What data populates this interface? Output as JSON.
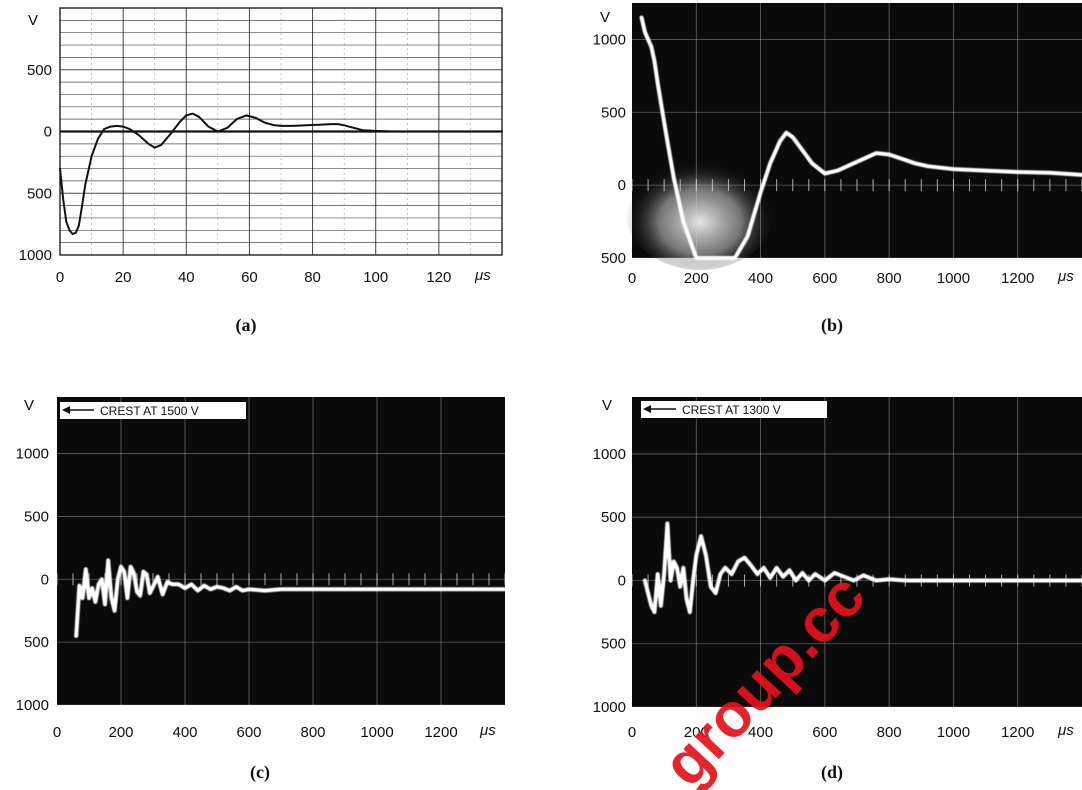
{
  "watermark": "group.cc",
  "chart_data": [
    {
      "type": "line",
      "caption": "(a)",
      "ylabel": "V",
      "xunit": "μs",
      "xlim": [
        0,
        140
      ],
      "ylim": [
        -1000,
        1000
      ],
      "x_ticks": [
        "0",
        "20",
        "40",
        "60",
        "80",
        "100",
        "120"
      ],
      "y_ticks": [
        {
          "v": 500,
          "label": "500"
        },
        {
          "v": 0,
          "label": "0"
        },
        {
          "v": -500,
          "label": "500"
        },
        {
          "v": -1000,
          "label": "1000"
        }
      ],
      "grid": true,
      "background": "light",
      "series": [
        {
          "x": [
            0,
            1,
            2,
            3,
            4,
            5,
            6,
            7,
            8,
            10,
            12,
            14,
            16,
            18,
            20,
            22,
            25,
            28,
            30,
            32,
            35,
            38,
            40,
            42,
            44,
            47,
            50,
            53,
            56,
            59,
            62,
            65,
            68,
            70,
            74,
            78,
            82,
            86,
            88,
            90,
            93,
            96,
            100,
            105,
            110,
            120,
            130,
            140
          ],
          "y": [
            -300,
            -550,
            -730,
            -800,
            -830,
            -820,
            -760,
            -600,
            -430,
            -200,
            -60,
            20,
            40,
            45,
            40,
            20,
            -30,
            -100,
            -130,
            -110,
            -20,
            80,
            130,
            145,
            120,
            40,
            0,
            30,
            100,
            130,
            110,
            70,
            50,
            45,
            45,
            50,
            55,
            60,
            60,
            50,
            30,
            10,
            5,
            0,
            0,
            0,
            0,
            0
          ]
        }
      ]
    },
    {
      "type": "line",
      "caption": "(b)",
      "ylabel": "V",
      "xunit": "μs",
      "xlim": [
        0,
        1400
      ],
      "ylim": [
        -500,
        1250
      ],
      "x_ticks": [
        "0",
        "200",
        "400",
        "600",
        "800",
        "1000",
        "1200"
      ],
      "y_ticks": [
        {
          "v": 1000,
          "label": "1000"
        },
        {
          "v": 500,
          "label": "500"
        },
        {
          "v": 0,
          "label": "0"
        },
        {
          "v": -500,
          "label": "500"
        }
      ],
      "grid": true,
      "background": "dark",
      "series": [
        {
          "x": [
            30,
            40,
            50,
            60,
            70,
            80,
            95,
            110,
            130,
            160,
            200,
            240,
            280,
            320,
            360,
            400,
            430,
            460,
            480,
            500,
            530,
            560,
            600,
            640,
            680,
            720,
            760,
            800,
            840,
            880,
            920,
            960,
            1000,
            1100,
            1200,
            1300,
            1400
          ],
          "y": [
            1150,
            1050,
            1000,
            950,
            850,
            700,
            500,
            300,
            50,
            -250,
            -500,
            -500,
            -500,
            -500,
            -350,
            -50,
            150,
            300,
            360,
            330,
            240,
            150,
            80,
            100,
            140,
            180,
            220,
            210,
            180,
            150,
            130,
            120,
            110,
            100,
            90,
            85,
            70
          ]
        }
      ]
    },
    {
      "type": "line",
      "caption": "(c)",
      "ylabel": "V",
      "xunit": "μs",
      "annotation": "CREST AT 1500 V",
      "xlim": [
        0,
        1400
      ],
      "ylim": [
        -1000,
        1450
      ],
      "x_ticks": [
        "0",
        "200",
        "400",
        "600",
        "800",
        "1000",
        "1200"
      ],
      "y_ticks": [
        {
          "v": 1000,
          "label": "1000"
        },
        {
          "v": 500,
          "label": "500"
        },
        {
          "v": 0,
          "label": "0"
        },
        {
          "v": -500,
          "label": "500"
        },
        {
          "v": -1000,
          "label": "1000"
        }
      ],
      "grid": true,
      "background": "dark",
      "series": [
        {
          "x": [
            60,
            70,
            80,
            90,
            100,
            110,
            120,
            130,
            140,
            150,
            160,
            170,
            180,
            190,
            200,
            210,
            220,
            230,
            240,
            250,
            260,
            270,
            280,
            290,
            300,
            315,
            330,
            345,
            360,
            380,
            400,
            420,
            440,
            460,
            480,
            500,
            520,
            540,
            560,
            580,
            600,
            650,
            700,
            800,
            900,
            1000,
            1100,
            1200,
            1300,
            1400
          ],
          "y": [
            -450,
            -50,
            -150,
            80,
            -150,
            -70,
            -180,
            -40,
            0,
            -200,
            150,
            -150,
            -250,
            0,
            100,
            60,
            -150,
            100,
            50,
            -100,
            -130,
            60,
            40,
            -110,
            -60,
            20,
            -120,
            -20,
            -40,
            -40,
            -70,
            -40,
            -90,
            -50,
            -80,
            -60,
            -70,
            -90,
            -60,
            -90,
            -80,
            -90,
            -80,
            -80,
            -80,
            -80,
            -80,
            -80,
            -80,
            -80
          ]
        }
      ]
    },
    {
      "type": "line",
      "caption": "(d)",
      "ylabel": "V",
      "xunit": "μs",
      "annotation": "CREST AT 1300 V",
      "xlim": [
        0,
        1400
      ],
      "ylim": [
        -1000,
        1450
      ],
      "x_ticks": [
        "0",
        "200",
        "400",
        "600",
        "800",
        "1000",
        "1200"
      ],
      "y_ticks": [
        {
          "v": 1000,
          "label": "1000"
        },
        {
          "v": 500,
          "label": "500"
        },
        {
          "v": 0,
          "label": "0"
        },
        {
          "v": -500,
          "label": "500"
        },
        {
          "v": -1000,
          "label": "1000"
        }
      ],
      "grid": true,
      "background": "dark",
      "series": [
        {
          "x": [
            40,
            50,
            60,
            70,
            80,
            90,
            100,
            110,
            120,
            130,
            140,
            150,
            160,
            170,
            180,
            190,
            200,
            215,
            230,
            245,
            260,
            275,
            290,
            310,
            330,
            350,
            370,
            390,
            410,
            430,
            450,
            470,
            490,
            510,
            530,
            550,
            570,
            600,
            630,
            660,
            690,
            720,
            760,
            800,
            850,
            900,
            1000,
            1100,
            1200,
            1300,
            1400
          ],
          "y": [
            0,
            -100,
            -200,
            -250,
            50,
            -200,
            50,
            450,
            0,
            150,
            100,
            -50,
            100,
            -150,
            -250,
            0,
            200,
            350,
            200,
            -50,
            -100,
            50,
            100,
            50,
            150,
            180,
            120,
            50,
            100,
            20,
            100,
            30,
            80,
            0,
            60,
            0,
            50,
            0,
            60,
            30,
            0,
            40,
            0,
            10,
            0,
            0,
            0,
            0,
            0,
            0,
            0
          ]
        }
      ]
    }
  ]
}
